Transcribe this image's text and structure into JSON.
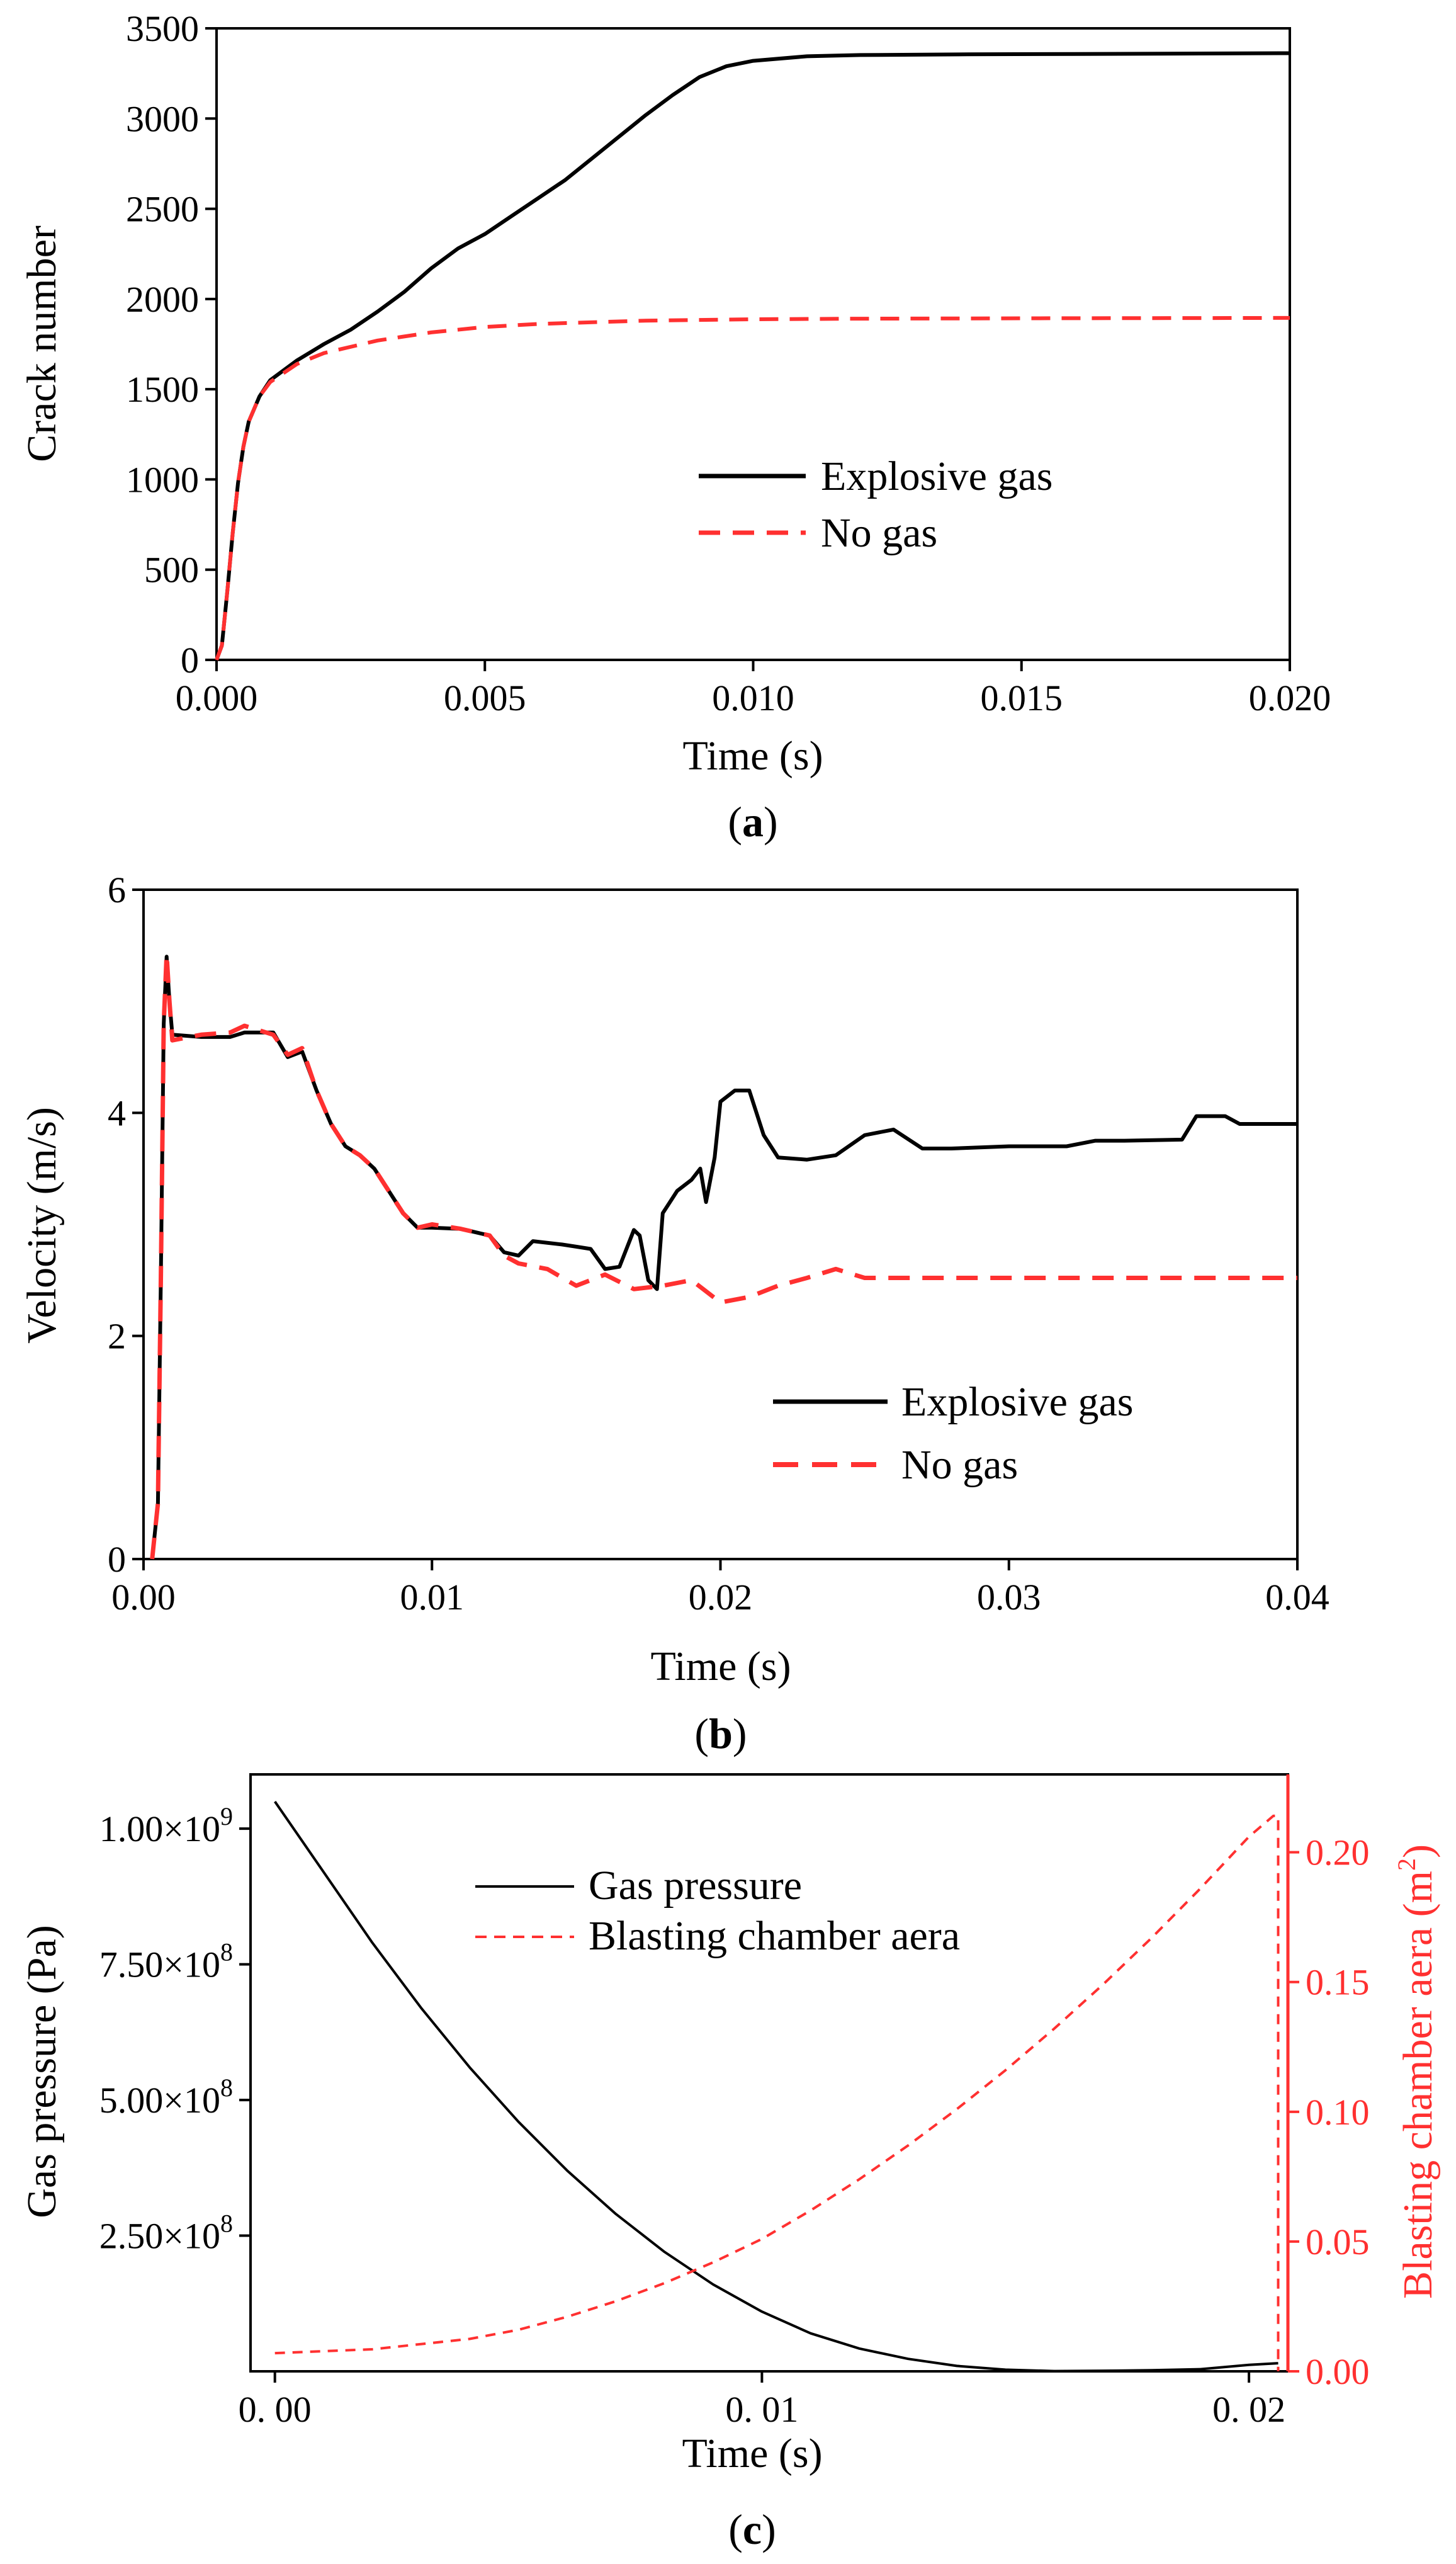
{
  "chart_data": [
    {
      "id": "a",
      "type": "line",
      "caption_label": "a",
      "xlabel": "Time (s)",
      "ylabel": "Crack number",
      "xlim": [
        0,
        0.02
      ],
      "ylim": [
        0,
        3500
      ],
      "xticks": [
        0,
        0.005,
        0.01,
        0.015,
        0.02
      ],
      "xtick_labels": [
        "0.000",
        "0.005",
        "0.010",
        "0.015",
        "0.020"
      ],
      "yticks": [
        0,
        500,
        1000,
        1500,
        2000,
        2500,
        3000,
        3500
      ],
      "ytick_labels": [
        "0",
        "500",
        "1000",
        "1500",
        "2000",
        "2500",
        "3000",
        "3500"
      ],
      "series": [
        {
          "name": "Explosive gas",
          "color": "#000000",
          "dash": "solid",
          "points": [
            [
              0,
              0
            ],
            [
              0.0001,
              80
            ],
            [
              0.0002,
              380
            ],
            [
              0.0003,
              700
            ],
            [
              0.0004,
              980
            ],
            [
              0.0005,
              1180
            ],
            [
              0.0006,
              1320
            ],
            [
              0.0008,
              1460
            ],
            [
              0.001,
              1550
            ],
            [
              0.0015,
              1660
            ],
            [
              0.002,
              1750
            ],
            [
              0.0025,
              1830
            ],
            [
              0.003,
              1930
            ],
            [
              0.0035,
              2040
            ],
            [
              0.004,
              2170
            ],
            [
              0.0045,
              2280
            ],
            [
              0.005,
              2360
            ],
            [
              0.0055,
              2460
            ],
            [
              0.006,
              2560
            ],
            [
              0.0065,
              2660
            ],
            [
              0.007,
              2780
            ],
            [
              0.0075,
              2900
            ],
            [
              0.008,
              3020
            ],
            [
              0.0085,
              3130
            ],
            [
              0.009,
              3230
            ],
            [
              0.0095,
              3290
            ],
            [
              0.01,
              3320
            ],
            [
              0.011,
              3345
            ],
            [
              0.012,
              3352
            ],
            [
              0.014,
              3356
            ],
            [
              0.016,
              3358
            ],
            [
              0.018,
              3360
            ],
            [
              0.02,
              3362
            ]
          ]
        },
        {
          "name": "No gas",
          "color": "#ff3030",
          "dash": "dashed",
          "points": [
            [
              0,
              0
            ],
            [
              0.0001,
              80
            ],
            [
              0.0002,
              380
            ],
            [
              0.0003,
              700
            ],
            [
              0.0004,
              980
            ],
            [
              0.0005,
              1180
            ],
            [
              0.0006,
              1320
            ],
            [
              0.0008,
              1460
            ],
            [
              0.001,
              1540
            ],
            [
              0.0015,
              1640
            ],
            [
              0.002,
              1700
            ],
            [
              0.003,
              1770
            ],
            [
              0.004,
              1815
            ],
            [
              0.005,
              1845
            ],
            [
              0.006,
              1862
            ],
            [
              0.008,
              1880
            ],
            [
              0.01,
              1888
            ],
            [
              0.012,
              1891
            ],
            [
              0.015,
              1893
            ],
            [
              0.02,
              1895
            ]
          ]
        }
      ],
      "legend_position": "center-right"
    },
    {
      "id": "b",
      "type": "line",
      "caption_label": "b",
      "xlabel": "Time (s)",
      "ylabel": "Velocity (m/s)",
      "xlim": [
        0,
        0.04
      ],
      "ylim": [
        0,
        6
      ],
      "xticks": [
        0,
        0.01,
        0.02,
        0.03,
        0.04
      ],
      "xtick_labels": [
        "0.00",
        "0.01",
        "0.02",
        "0.03",
        "0.04"
      ],
      "yticks": [
        0,
        2,
        4,
        6
      ],
      "ytick_labels": [
        "0",
        "2",
        "4",
        "6"
      ],
      "series": [
        {
          "name": "Explosive gas",
          "color": "#000000",
          "dash": "solid",
          "points": [
            [
              0.0003,
              0
            ],
            [
              0.0005,
              0.5
            ],
            [
              0.0006,
              2.5
            ],
            [
              0.0007,
              4.8
            ],
            [
              0.0008,
              5.4
            ],
            [
              0.0009,
              5.0
            ],
            [
              0.001,
              4.7
            ],
            [
              0.002,
              4.68
            ],
            [
              0.003,
              4.68
            ],
            [
              0.0035,
              4.72
            ],
            [
              0.0045,
              4.72
            ],
            [
              0.005,
              4.5
            ],
            [
              0.0055,
              4.55
            ],
            [
              0.006,
              4.2
            ],
            [
              0.0065,
              3.9
            ],
            [
              0.007,
              3.7
            ],
            [
              0.0075,
              3.62
            ],
            [
              0.008,
              3.5
            ],
            [
              0.0085,
              3.3
            ],
            [
              0.009,
              3.1
            ],
            [
              0.0095,
              2.97
            ],
            [
              0.01,
              2.97
            ],
            [
              0.011,
              2.96
            ],
            [
              0.012,
              2.9
            ],
            [
              0.0125,
              2.75
            ],
            [
              0.013,
              2.72
            ],
            [
              0.0135,
              2.85
            ],
            [
              0.0145,
              2.82
            ],
            [
              0.015,
              2.8
            ],
            [
              0.0155,
              2.78
            ],
            [
              0.016,
              2.6
            ],
            [
              0.0165,
              2.62
            ],
            [
              0.017,
              2.95
            ],
            [
              0.0172,
              2.9
            ],
            [
              0.0175,
              2.5
            ],
            [
              0.0178,
              2.42
            ],
            [
              0.018,
              3.1
            ],
            [
              0.0185,
              3.3
            ],
            [
              0.019,
              3.4
            ],
            [
              0.0193,
              3.5
            ],
            [
              0.0195,
              3.2
            ],
            [
              0.0198,
              3.6
            ],
            [
              0.02,
              4.1
            ],
            [
              0.0205,
              4.2
            ],
            [
              0.021,
              4.2
            ],
            [
              0.0215,
              3.8
            ],
            [
              0.022,
              3.6
            ],
            [
              0.023,
              3.58
            ],
            [
              0.024,
              3.62
            ],
            [
              0.025,
              3.8
            ],
            [
              0.026,
              3.85
            ],
            [
              0.027,
              3.68
            ],
            [
              0.028,
              3.68
            ],
            [
              0.03,
              3.7
            ],
            [
              0.032,
              3.7
            ],
            [
              0.033,
              3.75
            ],
            [
              0.034,
              3.75
            ],
            [
              0.036,
              3.76
            ],
            [
              0.0365,
              3.97
            ],
            [
              0.0375,
              3.97
            ],
            [
              0.038,
              3.9
            ],
            [
              0.04,
              3.9
            ]
          ]
        },
        {
          "name": "No gas",
          "color": "#ff3030",
          "dash": "dashed",
          "points": [
            [
              0.0003,
              0
            ],
            [
              0.0005,
              0.5
            ],
            [
              0.0006,
              2.5
            ],
            [
              0.0007,
              4.8
            ],
            [
              0.0008,
              5.42
            ],
            [
              0.0009,
              5.0
            ],
            [
              0.001,
              4.65
            ],
            [
              0.002,
              4.7
            ],
            [
              0.003,
              4.72
            ],
            [
              0.0035,
              4.78
            ],
            [
              0.0045,
              4.7
            ],
            [
              0.005,
              4.52
            ],
            [
              0.0055,
              4.58
            ],
            [
              0.006,
              4.2
            ],
            [
              0.0065,
              3.9
            ],
            [
              0.007,
              3.7
            ],
            [
              0.0075,
              3.62
            ],
            [
              0.008,
              3.5
            ],
            [
              0.0085,
              3.3
            ],
            [
              0.009,
              3.1
            ],
            [
              0.0095,
              2.97
            ],
            [
              0.01,
              3.0
            ],
            [
              0.011,
              2.96
            ],
            [
              0.012,
              2.9
            ],
            [
              0.0125,
              2.72
            ],
            [
              0.013,
              2.65
            ],
            [
              0.014,
              2.6
            ],
            [
              0.015,
              2.45
            ],
            [
              0.016,
              2.55
            ],
            [
              0.017,
              2.42
            ],
            [
              0.018,
              2.45
            ],
            [
              0.019,
              2.5
            ],
            [
              0.02,
              2.3
            ],
            [
              0.021,
              2.35
            ],
            [
              0.022,
              2.45
            ],
            [
              0.023,
              2.52
            ],
            [
              0.024,
              2.6
            ],
            [
              0.025,
              2.52
            ],
            [
              0.03,
              2.52
            ],
            [
              0.035,
              2.52
            ],
            [
              0.04,
              2.52
            ]
          ]
        }
      ],
      "legend_position": "center-right"
    },
    {
      "id": "c",
      "type": "line",
      "caption_label": "c",
      "xlabel": "Time (s)",
      "ylabel": "Gas pressure (Pa)",
      "ylabel_right_main": "Blasting chamber aera (m",
      "ylabel_right_sup": "2",
      "ylabel_right_close": ")",
      "xlim": [
        -0.0005,
        0.0208
      ],
      "ylim_left": [
        0,
        1100000000.0
      ],
      "ylim_right": [
        0,
        0.23
      ],
      "xticks": [
        0,
        0.01,
        0.02
      ],
      "xtick_labels": [
        "0. 00",
        "0. 01",
        "0. 02"
      ],
      "yticks_left": [
        250000000.0,
        500000000.0,
        750000000.0,
        1000000000.0
      ],
      "ytick_left_labels": [
        {
          "mantissa": "2.50×10",
          "exp": "8"
        },
        {
          "mantissa": "5.00×10",
          "exp": "8"
        },
        {
          "mantissa": "7.50×10",
          "exp": "8"
        },
        {
          "mantissa": "1.00×10",
          "exp": "9"
        }
      ],
      "yticks_right": [
        0,
        0.05,
        0.1,
        0.15,
        0.2
      ],
      "ytick_right_labels": [
        "0.00",
        "0.05",
        "0.10",
        "0.15",
        "0.20"
      ],
      "right_axis_color": "#ff3030",
      "series": [
        {
          "name": "Gas pressure",
          "axis": "left",
          "color": "#000000",
          "dash": "solid",
          "points": [
            [
              0,
              1050000000.0
            ],
            [
              0.001,
              920000000.0
            ],
            [
              0.002,
              790000000.0
            ],
            [
              0.003,
              670000000.0
            ],
            [
              0.004,
              560000000.0
            ],
            [
              0.005,
              460000000.0
            ],
            [
              0.006,
              370000000.0
            ],
            [
              0.007,
              290000000.0
            ],
            [
              0.008,
              220000000.0
            ],
            [
              0.009,
              160000000.0
            ],
            [
              0.01,
              110000000.0
            ],
            [
              0.011,
              70000000.0
            ],
            [
              0.012,
              42000000.0
            ],
            [
              0.013,
              23000000.0
            ],
            [
              0.014,
              10000000.0
            ],
            [
              0.015,
              3000000.0
            ],
            [
              0.016,
              500000.0
            ],
            [
              0.017,
              1000000.0
            ],
            [
              0.018,
              2000000.0
            ],
            [
              0.019,
              4000000.0
            ],
            [
              0.02,
              12000000.0
            ],
            [
              0.0206,
              15000000.0
            ]
          ]
        },
        {
          "name": "Blasting chamber aera",
          "axis": "right",
          "color": "#ff3030",
          "dash": "dashed",
          "points": [
            [
              0,
              0.007
            ],
            [
              0.002,
              0.0085
            ],
            [
              0.004,
              0.0125
            ],
            [
              0.005,
              0.016
            ],
            [
              0.006,
              0.021
            ],
            [
              0.007,
              0.027
            ],
            [
              0.008,
              0.034
            ],
            [
              0.009,
              0.042
            ],
            [
              0.01,
              0.051
            ],
            [
              0.011,
              0.062
            ],
            [
              0.012,
              0.074
            ],
            [
              0.013,
              0.087
            ],
            [
              0.014,
              0.101
            ],
            [
              0.015,
              0.116
            ],
            [
              0.016,
              0.132
            ],
            [
              0.017,
              0.149
            ],
            [
              0.018,
              0.167
            ],
            [
              0.019,
              0.186
            ],
            [
              0.02,
              0.206
            ],
            [
              0.0205,
              0.214
            ],
            [
              0.0206,
              0.214
            ],
            [
              0.0206,
              0.0
            ]
          ]
        }
      ],
      "legend_position": "top-center"
    }
  ]
}
